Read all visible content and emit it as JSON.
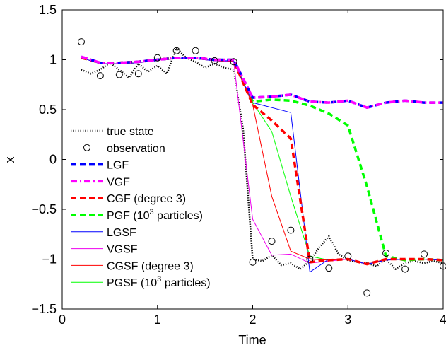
{
  "chart_data": {
    "type": "line",
    "xlabel": "Time",
    "ylabel": "x",
    "xlim": [
      0,
      4
    ],
    "ylim": [
      -1.5,
      1.5
    ],
    "xticks": [
      "0",
      "1",
      "2",
      "3",
      "4"
    ],
    "yticks": [
      "1.5",
      "1",
      "0.5",
      "0",
      "−0.5",
      "−1",
      "−1.5"
    ],
    "grid": false,
    "legend_position": "left",
    "series": [
      {
        "name": "true state",
        "style": "dotted",
        "color": "#000000",
        "x": [
          0.2,
          0.3,
          0.4,
          0.5,
          0.6,
          0.7,
          0.8,
          0.9,
          1.0,
          1.1,
          1.2,
          1.3,
          1.4,
          1.5,
          1.6,
          1.7,
          1.8,
          1.9,
          2.0,
          2.1,
          2.2,
          2.3,
          2.4,
          2.5,
          2.6,
          2.7,
          2.8,
          2.9,
          3.0,
          3.1,
          3.2,
          3.3,
          3.4,
          3.5,
          3.6,
          3.7,
          3.8,
          3.9,
          4.0
        ],
        "y": [
          0.9,
          0.86,
          0.9,
          0.97,
          0.9,
          0.82,
          0.96,
          0.88,
          0.94,
          0.86,
          1.12,
          1.02,
          0.98,
          0.92,
          0.96,
          0.92,
          0.9,
          0.3,
          -1.0,
          -1.02,
          -0.96,
          -1.06,
          -1.04,
          -1.1,
          -1.02,
          -0.88,
          -0.77,
          -0.95,
          -1.01,
          -1.03,
          -1.04,
          -1.07,
          -1.0,
          -1.1,
          -1.04,
          -1.02,
          -1.04,
          -1.02,
          -1.04
        ]
      },
      {
        "name": "observation",
        "style": "markers",
        "color": "#000000",
        "x": [
          0.2,
          0.4,
          0.6,
          0.8,
          1.0,
          1.2,
          1.4,
          1.6,
          1.8,
          2.0,
          2.2,
          2.4,
          2.6,
          2.8,
          3.0,
          3.2,
          3.4,
          3.6,
          3.8,
          4.0
        ],
        "y": [
          1.18,
          0.84,
          0.85,
          0.86,
          1.02,
          1.09,
          1.09,
          0.99,
          0.98,
          -1.03,
          -0.82,
          -0.71,
          -1.0,
          -1.09,
          -0.97,
          -1.34,
          -0.94,
          -1.1,
          -0.95,
          -1.07
        ]
      },
      {
        "name": "LGF",
        "style": "dashed-thick",
        "color": "#0000ff",
        "x": [
          0.2,
          0.4,
          0.6,
          0.8,
          1.0,
          1.2,
          1.4,
          1.6,
          1.8,
          2.0,
          2.2,
          2.4,
          2.6,
          2.8,
          3.0,
          3.2,
          3.4,
          3.6,
          3.8,
          4.0
        ],
        "y": [
          1.03,
          0.97,
          0.97,
          0.98,
          1.0,
          1.02,
          1.02,
          1.0,
          1.0,
          0.62,
          0.63,
          0.65,
          0.58,
          0.57,
          0.59,
          0.52,
          0.57,
          0.59,
          0.57,
          0.57
        ]
      },
      {
        "name": "VGF",
        "style": "dashdot-thick",
        "color": "#ff00ff",
        "x": [
          0.2,
          0.4,
          0.6,
          0.8,
          1.0,
          1.2,
          1.4,
          1.6,
          1.8,
          2.0,
          2.2,
          2.4,
          2.6,
          2.8,
          3.0,
          3.2,
          3.4,
          3.6,
          3.8,
          4.0
        ],
        "y": [
          1.03,
          0.97,
          0.97,
          0.98,
          1.0,
          1.02,
          1.02,
          1.0,
          1.0,
          0.62,
          0.63,
          0.65,
          0.58,
          0.57,
          0.59,
          0.52,
          0.57,
          0.59,
          0.57,
          0.57
        ]
      },
      {
        "name": "CGF (degree 3)",
        "style": "dashed-thick",
        "color": "#ff0000",
        "x": [
          0.2,
          0.4,
          0.6,
          0.8,
          1.0,
          1.2,
          1.4,
          1.6,
          1.8,
          2.0,
          2.2,
          2.4,
          2.6,
          2.8,
          3.0,
          3.2,
          3.4,
          3.6,
          3.8,
          4.0
        ],
        "y": [
          1.02,
          0.97,
          0.97,
          0.98,
          1.0,
          1.02,
          1.02,
          1.0,
          0.99,
          0.55,
          0.39,
          0.21,
          -1.03,
          -1.01,
          -1.0,
          -1.05,
          -1.0,
          -1.0,
          -1.0,
          -1.01
        ]
      },
      {
        "name": "PGF (10^3 particles)",
        "legend_base": "PGF (10",
        "legend_exp": "3",
        "legend_tail": " particles)",
        "style": "dashed-thick",
        "color": "#00ff00",
        "x": [
          0.2,
          0.4,
          0.6,
          0.8,
          1.0,
          1.2,
          1.4,
          1.6,
          1.8,
          2.0,
          2.2,
          2.4,
          2.6,
          2.8,
          3.0,
          3.2,
          3.4,
          3.6,
          3.8,
          4.0
        ],
        "y": [
          1.02,
          0.97,
          0.97,
          0.98,
          1.0,
          1.02,
          1.02,
          1.0,
          0.99,
          0.58,
          0.6,
          0.59,
          0.54,
          0.46,
          0.34,
          -0.27,
          -0.97,
          -1.01,
          -1.0,
          -1.01
        ]
      },
      {
        "name": "LGSF",
        "style": "solid",
        "color": "#0000ff",
        "x": [
          0.2,
          0.4,
          0.6,
          0.8,
          1.0,
          1.2,
          1.4,
          1.6,
          1.8,
          2.0,
          2.2,
          2.4,
          2.6,
          2.8,
          3.0,
          3.2,
          3.4,
          3.6,
          3.8,
          4.0
        ],
        "y": [
          1.02,
          0.96,
          0.96,
          0.97,
          1.0,
          1.01,
          1.01,
          0.99,
          0.99,
          0.57,
          0.52,
          0.47,
          -1.13,
          -1.0,
          -1.0,
          -1.05,
          -1.01,
          -1.0,
          -1.0,
          -1.01
        ]
      },
      {
        "name": "VGSF",
        "style": "solid",
        "color": "#ee00ee",
        "x": [
          0.2,
          0.4,
          0.6,
          0.8,
          1.0,
          1.2,
          1.4,
          1.6,
          1.8,
          2.0,
          2.2,
          2.4,
          2.6,
          2.8,
          3.0,
          3.2,
          3.4,
          3.6,
          3.8,
          4.0
        ],
        "y": [
          1.02,
          0.96,
          0.96,
          0.97,
          1.0,
          1.01,
          1.01,
          0.99,
          0.98,
          -0.6,
          -0.96,
          -0.95,
          -1.04,
          -1.02,
          -1.0,
          -1.05,
          -1.01,
          -1.0,
          -1.0,
          -1.01
        ]
      },
      {
        "name": "CGSF (degree 3)",
        "style": "solid",
        "color": "#ff0000",
        "x": [
          0.2,
          0.4,
          0.6,
          0.8,
          1.0,
          1.2,
          1.4,
          1.6,
          1.8,
          2.0,
          2.2,
          2.4,
          2.6,
          2.8,
          3.0,
          3.2,
          3.4,
          3.6,
          3.8,
          4.0
        ],
        "y": [
          1.02,
          0.96,
          0.96,
          0.97,
          1.0,
          1.01,
          1.01,
          0.99,
          0.98,
          0.55,
          -0.37,
          -0.92,
          -1.0,
          -1.01,
          -1.0,
          -1.05,
          -1.0,
          -1.0,
          -1.0,
          -1.01
        ]
      },
      {
        "name": "PGSF (10^3 particles)",
        "legend_base": "PGSF (10",
        "legend_exp": "3",
        "legend_tail": " particles)",
        "style": "solid",
        "color": "#00ff00",
        "x": [
          0.2,
          0.4,
          0.6,
          0.8,
          1.0,
          1.2,
          1.4,
          1.6,
          1.8,
          2.0,
          2.2,
          2.4,
          2.6,
          2.8,
          3.0,
          3.2,
          3.4,
          3.6,
          3.8,
          4.0
        ],
        "y": [
          1.02,
          0.96,
          0.96,
          0.97,
          1.0,
          1.01,
          1.01,
          0.99,
          0.98,
          0.57,
          0.28,
          -0.37,
          -0.97,
          -1.01,
          -1.0,
          -1.05,
          -1.0,
          -1.0,
          -1.0,
          -1.01
        ]
      }
    ]
  }
}
